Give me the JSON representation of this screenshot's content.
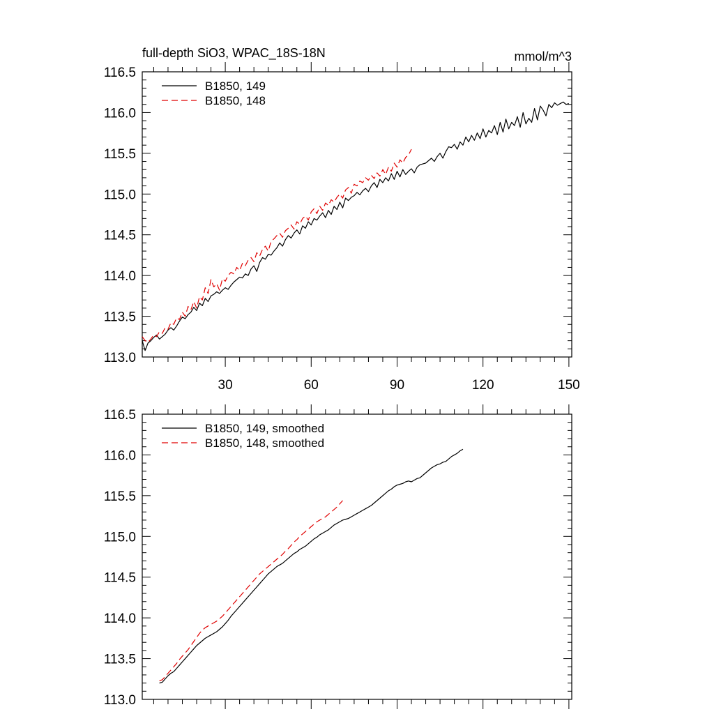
{
  "title": "full-depth SiO3, WPAC_18S-18N",
  "units": "mmol/m^3",
  "colors": {
    "run149": "#000000",
    "run148": "#e00000"
  },
  "chart_data": [
    {
      "type": "line",
      "title": "full-depth SiO3, WPAC_18S-18N",
      "units": "mmol/m^3",
      "xlim": [
        1,
        151
      ],
      "ylim": [
        113.0,
        116.5
      ],
      "xticks": [
        30,
        60,
        90,
        120,
        150
      ],
      "xtick_labels": [
        "30",
        "60",
        "90",
        "120",
        "150"
      ],
      "yticks": [
        113.0,
        113.5,
        114.0,
        114.5,
        115.0,
        115.5,
        116.0,
        116.5
      ],
      "ytick_labels": [
        "113.0",
        "113.5",
        "114.0",
        "114.5",
        "115.0",
        "115.5",
        "116.0",
        "116.5"
      ],
      "legend_position": "top-left",
      "series": [
        {
          "name": "B1850, 149",
          "style": "solid",
          "color": "#000000",
          "x_start": 1,
          "values": [
            113.2,
            113.08,
            113.17,
            113.2,
            113.24,
            113.27,
            113.22,
            113.25,
            113.28,
            113.33,
            113.36,
            113.33,
            113.38,
            113.44,
            113.49,
            113.47,
            113.52,
            113.55,
            113.61,
            113.57,
            113.66,
            113.63,
            113.72,
            113.68,
            113.75,
            113.77,
            113.8,
            113.78,
            113.82,
            113.85,
            113.83,
            113.88,
            113.92,
            113.95,
            113.98,
            113.97,
            114.02,
            114.0,
            114.08,
            114.12,
            114.05,
            114.16,
            114.22,
            114.2,
            114.26,
            114.25,
            114.3,
            114.34,
            114.4,
            114.36,
            114.44,
            114.49,
            114.46,
            114.52,
            114.56,
            114.51,
            114.61,
            114.58,
            114.66,
            114.62,
            114.7,
            114.68,
            114.73,
            114.77,
            114.71,
            114.8,
            114.75,
            114.85,
            114.81,
            114.9,
            114.83,
            114.95,
            114.92,
            114.96,
            114.98,
            115.02,
            114.99,
            115.04,
            115.07,
            115.03,
            115.1,
            115.14,
            115.08,
            115.18,
            115.14,
            115.2,
            115.16,
            115.25,
            115.18,
            115.28,
            115.21,
            115.3,
            115.24,
            115.28,
            115.31,
            115.26,
            115.33,
            115.36,
            115.37,
            115.38,
            115.41,
            115.44,
            115.4,
            115.46,
            115.5,
            115.44,
            115.52,
            115.58,
            115.57,
            115.61,
            115.55,
            115.64,
            115.6,
            115.7,
            115.64,
            115.72,
            115.66,
            115.75,
            115.68,
            115.8,
            115.7,
            115.78,
            115.75,
            115.84,
            115.73,
            115.88,
            115.76,
            115.92,
            115.8,
            115.88,
            115.84,
            115.95,
            115.82,
            116.0,
            115.86,
            115.93,
            115.88,
            116.05,
            115.91,
            116.08,
            116.03,
            115.96,
            116.1,
            116.06,
            116.12,
            116.09,
            116.11,
            116.13,
            116.1,
            116.11
          ]
        },
        {
          "name": "B1850, 148",
          "style": "dashed",
          "color": "#e00000",
          "x_start": 1,
          "values": [
            113.25,
            113.2,
            113.18,
            113.22,
            113.27,
            113.25,
            113.31,
            113.29,
            113.36,
            113.34,
            113.42,
            113.4,
            113.48,
            113.46,
            113.55,
            113.5,
            113.62,
            113.58,
            113.68,
            113.6,
            113.74,
            113.7,
            113.85,
            113.78,
            113.95,
            113.86,
            113.9,
            113.82,
            113.96,
            113.93,
            114.0,
            114.04,
            114.02,
            114.1,
            114.06,
            114.15,
            114.12,
            114.19,
            114.22,
            114.17,
            114.28,
            114.24,
            114.32,
            114.36,
            114.3,
            114.42,
            114.45,
            114.49,
            114.52,
            114.47,
            114.55,
            114.58,
            114.62,
            114.57,
            114.66,
            114.63,
            114.7,
            114.73,
            114.68,
            114.78,
            114.82,
            114.76,
            114.85,
            114.8,
            114.89,
            114.86,
            114.93,
            114.9,
            114.96,
            115.0,
            114.95,
            115.05,
            115.08,
            115.01,
            115.12,
            115.1,
            115.16,
            115.14,
            115.2,
            115.17,
            115.23,
            115.19,
            115.26,
            115.22,
            115.3,
            115.24,
            115.33,
            115.28,
            115.38,
            115.33,
            115.42,
            115.38,
            115.45,
            115.48,
            115.55
          ]
        }
      ]
    },
    {
      "type": "line",
      "xlim": [
        1,
        151
      ],
      "ylim": [
        113.0,
        116.5
      ],
      "xticks": [
        30,
        60,
        90,
        120,
        150
      ],
      "yticks": [
        113.0,
        113.5,
        114.0,
        114.5,
        115.0,
        115.5,
        116.0,
        116.5
      ],
      "ytick_labels": [
        "113.0",
        "113.5",
        "114.0",
        "114.5",
        "115.0",
        "115.5",
        "116.0",
        "116.5"
      ],
      "legend_position": "top-left",
      "series": [
        {
          "name": "B1850, 149, smoothed",
          "style": "solid",
          "color": "#000000",
          "x_start": 7,
          "values": [
            113.2,
            113.21,
            113.25,
            113.29,
            113.32,
            113.34,
            113.38,
            113.42,
            113.46,
            113.5,
            113.54,
            113.58,
            113.62,
            113.66,
            113.69,
            113.72,
            113.75,
            113.77,
            113.79,
            113.81,
            113.83,
            113.86,
            113.89,
            113.93,
            113.97,
            114.02,
            114.06,
            114.1,
            114.14,
            114.18,
            114.22,
            114.26,
            114.3,
            114.34,
            114.38,
            114.42,
            114.46,
            114.5,
            114.54,
            114.57,
            114.6,
            114.63,
            114.65,
            114.67,
            114.7,
            114.73,
            114.76,
            114.79,
            114.81,
            114.84,
            114.86,
            114.88,
            114.91,
            114.94,
            114.97,
            114.99,
            115.02,
            115.04,
            115.06,
            115.08,
            115.11,
            115.14,
            115.16,
            115.18,
            115.2,
            115.21,
            115.22,
            115.24,
            115.26,
            115.28,
            115.3,
            115.32,
            115.34,
            115.36,
            115.38,
            115.41,
            115.44,
            115.47,
            115.5,
            115.53,
            115.56,
            115.58,
            115.61,
            115.63,
            115.64,
            115.65,
            115.67,
            115.68,
            115.67,
            115.69,
            115.71,
            115.72,
            115.75,
            115.78,
            115.81,
            115.84,
            115.86,
            115.88,
            115.89,
            115.91,
            115.92,
            115.95,
            115.98,
            116.0,
            116.02,
            116.05,
            116.07
          ]
        },
        {
          "name": "B1850, 148, smoothed",
          "style": "dashed",
          "color": "#e00000",
          "x_start": 7,
          "values": [
            113.23,
            113.24,
            113.28,
            113.32,
            113.36,
            113.4,
            113.44,
            113.49,
            113.53,
            113.57,
            113.61,
            113.66,
            113.71,
            113.76,
            113.81,
            113.85,
            113.88,
            113.9,
            113.92,
            113.94,
            113.96,
            113.99,
            114.02,
            114.06,
            114.1,
            114.14,
            114.18,
            114.22,
            114.26,
            114.3,
            114.34,
            114.38,
            114.42,
            114.46,
            114.5,
            114.54,
            114.57,
            114.6,
            114.63,
            114.66,
            114.69,
            114.72,
            114.75,
            114.78,
            114.82,
            114.85,
            114.89,
            114.93,
            114.96,
            115.0,
            115.03,
            115.06,
            115.09,
            115.12,
            115.15,
            115.18,
            115.2,
            115.22,
            115.24,
            115.27,
            115.3,
            115.33,
            115.36,
            115.4,
            115.44
          ]
        }
      ]
    }
  ]
}
